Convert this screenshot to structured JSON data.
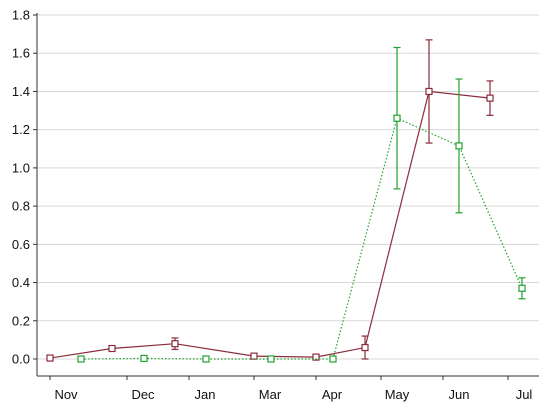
{
  "chart_data": {
    "type": "line",
    "title": "",
    "xlabel": "",
    "ylabel": "",
    "categories": [
      "Nov",
      "Dec",
      "Jan",
      "Mar",
      "Apr",
      "May",
      "Jun",
      "Jul"
    ],
    "ylim": [
      0,
      1.8
    ],
    "yticks": [
      "0.0",
      "0.2",
      "0.4",
      "0.6",
      "0.8",
      "1.0",
      "1.2",
      "1.4",
      "1.6",
      "1.8"
    ],
    "grid": "horizontal",
    "series": [
      {
        "color": "#8b2b3a",
        "line_style": "solid",
        "marker": "square",
        "points": [
          {
            "x": "Nov",
            "y": 0.005,
            "err": 0.005
          },
          {
            "x": "Dec",
            "y": 0.055,
            "err": 0.01
          },
          {
            "x": "Jan",
            "y": 0.08,
            "err": 0.03
          },
          {
            "x": "Mar",
            "y": 0.015,
            "err": 0.005
          },
          {
            "x": "Apr",
            "y": 0.01,
            "err": 0.005
          },
          {
            "x": "May",
            "y": 0.06,
            "err": 0.06
          },
          {
            "x": "Jun",
            "y": 1.4,
            "err": 0.27
          },
          {
            "x": "Jul",
            "y": 1.365,
            "err": 0.09
          }
        ]
      },
      {
        "color": "#22a22f",
        "line_style": "dotted",
        "marker": "square",
        "points": [
          {
            "x": "Nov",
            "y": 0.0,
            "err": 0.003
          },
          {
            "x": "Dec",
            "y": 0.003,
            "err": 0.003
          },
          {
            "x": "Jan",
            "y": 0.0,
            "err": 0.003
          },
          {
            "x": "Mar",
            "y": 0.0,
            "err": 0.003
          },
          {
            "x": "Apr",
            "y": 0.0,
            "err": 0.003
          },
          {
            "x": "May",
            "y": 1.26,
            "err": 0.37
          },
          {
            "x": "Jun",
            "y": 1.115,
            "err": 0.35
          },
          {
            "x": "Jul",
            "y": 0.37,
            "err": 0.055
          }
        ]
      }
    ]
  }
}
